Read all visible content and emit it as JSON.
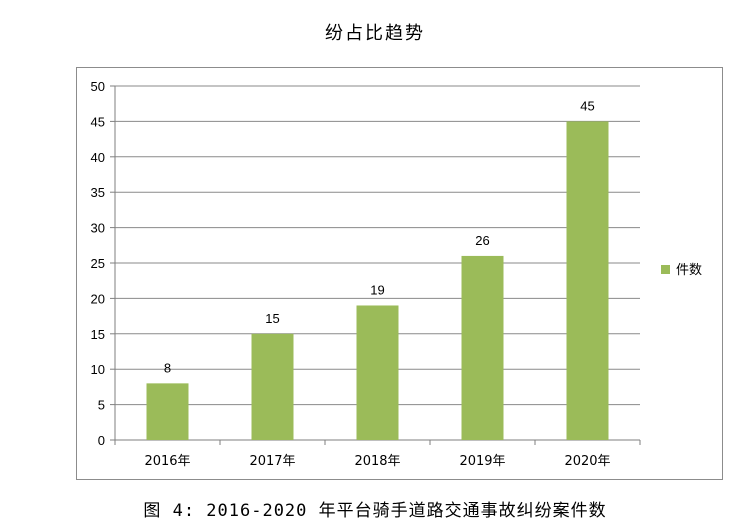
{
  "page_title": "纷占比趋势",
  "caption": "图 4: 2016-2020 年平台骑手道路交通事故纠纷案件数",
  "colors": {
    "bar": "#9bbb59",
    "grid": "#8a8a8a",
    "axis": "#7f7f7f",
    "frame": "#8c8c8c"
  },
  "chart_data": {
    "type": "bar",
    "categories": [
      "2016年",
      "2017年",
      "2018年",
      "2019年",
      "2020年"
    ],
    "series": [
      {
        "name": "件数",
        "values": [
          8,
          15,
          19,
          26,
          45
        ]
      }
    ],
    "ylim": [
      0,
      50
    ],
    "yticks": [
      0,
      5,
      10,
      15,
      20,
      25,
      30,
      35,
      40,
      45,
      50
    ],
    "grid": true,
    "legend": "right",
    "data_labels": true
  }
}
